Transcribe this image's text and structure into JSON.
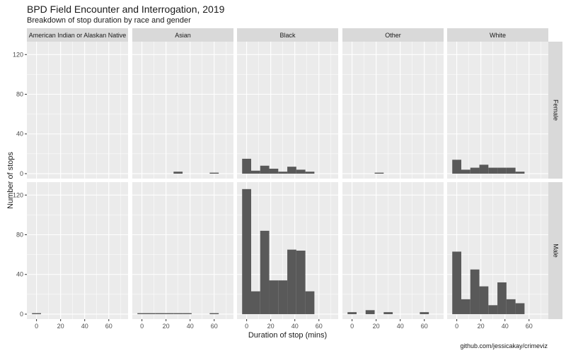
{
  "title": "BPD Field Encounter and Interrogation, 2019",
  "subtitle": "Breakdown of stop duration by race and gender",
  "caption": "github.com/jessicakay/crimeviz",
  "chart_data": {
    "type": "bar",
    "xlabel": "Duration of stop (mins)",
    "ylabel": "Number of stops",
    "xlim": [
      -8,
      76
    ],
    "ylim": [
      -5,
      133
    ],
    "x_ticks": [
      0,
      20,
      40,
      60
    ],
    "y_ticks": [
      0,
      40,
      80,
      120
    ],
    "bin_width": 7.5,
    "bin_centers": [
      0,
      7.5,
      15,
      22.5,
      30,
      37.5,
      45,
      52.5,
      60,
      67.5
    ],
    "columns": [
      "American Indian or Alaskan Native",
      "Asian",
      "Black",
      "Other",
      "White"
    ],
    "rows": [
      "Female",
      "Male"
    ],
    "bar_color": "#595959",
    "panel_background": "#ebebeb",
    "strip_background": "#d9d9d9",
    "grid": true,
    "panels": [
      {
        "row": "Female",
        "column": "American Indian or Alaskan Native",
        "values": [
          0,
          0,
          0,
          0,
          0,
          0,
          0,
          0,
          0,
          0
        ]
      },
      {
        "row": "Female",
        "column": "Asian",
        "values": [
          0,
          0,
          0,
          0,
          2,
          0,
          0,
          0,
          1,
          0
        ]
      },
      {
        "row": "Female",
        "column": "Black",
        "values": [
          15,
          3,
          8,
          5,
          2,
          7,
          4,
          2,
          0,
          0
        ]
      },
      {
        "row": "Female",
        "column": "Other",
        "values": [
          0,
          0,
          0,
          1,
          0,
          0,
          0,
          0,
          0,
          0
        ]
      },
      {
        "row": "Female",
        "column": "White",
        "values": [
          14,
          4,
          6,
          9,
          6,
          6,
          6,
          2,
          0,
          0
        ]
      },
      {
        "row": "Male",
        "column": "American Indian or Alaskan Native",
        "values": [
          1,
          0,
          0,
          0,
          0,
          0,
          0,
          0,
          0,
          0
        ]
      },
      {
        "row": "Male",
        "column": "Asian",
        "values": [
          1,
          1,
          1,
          1,
          1,
          1,
          0,
          0,
          1,
          0
        ]
      },
      {
        "row": "Male",
        "column": "Black",
        "values": [
          126,
          23,
          84,
          34,
          34,
          65,
          64,
          23,
          0,
          0
        ]
      },
      {
        "row": "Male",
        "column": "Other",
        "values": [
          2,
          0,
          4,
          0,
          2,
          0,
          0,
          0,
          2,
          0
        ]
      },
      {
        "row": "Male",
        "column": "White",
        "values": [
          63,
          15,
          45,
          28,
          9,
          32,
          15,
          11,
          0,
          0
        ]
      }
    ]
  }
}
